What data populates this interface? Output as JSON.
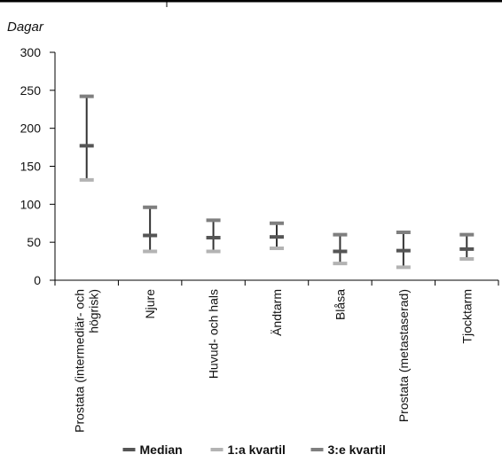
{
  "chart_data": {
    "type": "high-low-median",
    "ylabel": "Dagar",
    "ylim": [
      0,
      300
    ],
    "yticks": [
      0,
      50,
      100,
      150,
      200,
      250,
      300
    ],
    "categories": [
      [
        "Prostata (intermediär- och",
        "högrisk)"
      ],
      [
        "Njure"
      ],
      [
        "Huvud- och hals"
      ],
      [
        "Ändtarm"
      ],
      [
        "Blåsa"
      ],
      [
        "Prostata (metastaserad)"
      ],
      [
        "Tjocktarm"
      ]
    ],
    "series": [
      {
        "name": "Median",
        "values": [
          177,
          59,
          56,
          57,
          38,
          39,
          41
        ],
        "color": "#555555"
      },
      {
        "name": "1:a kvartil",
        "values": [
          132,
          38,
          38,
          42,
          22,
          17,
          28
        ],
        "color": "#b3b3b3"
      },
      {
        "name": "3:e kvartil",
        "values": [
          242,
          96,
          79,
          75,
          60,
          63,
          60
        ],
        "color": "#7f7f7f"
      }
    ],
    "legend_position": "bottom",
    "grid": false,
    "range_line_color": "#333333"
  }
}
